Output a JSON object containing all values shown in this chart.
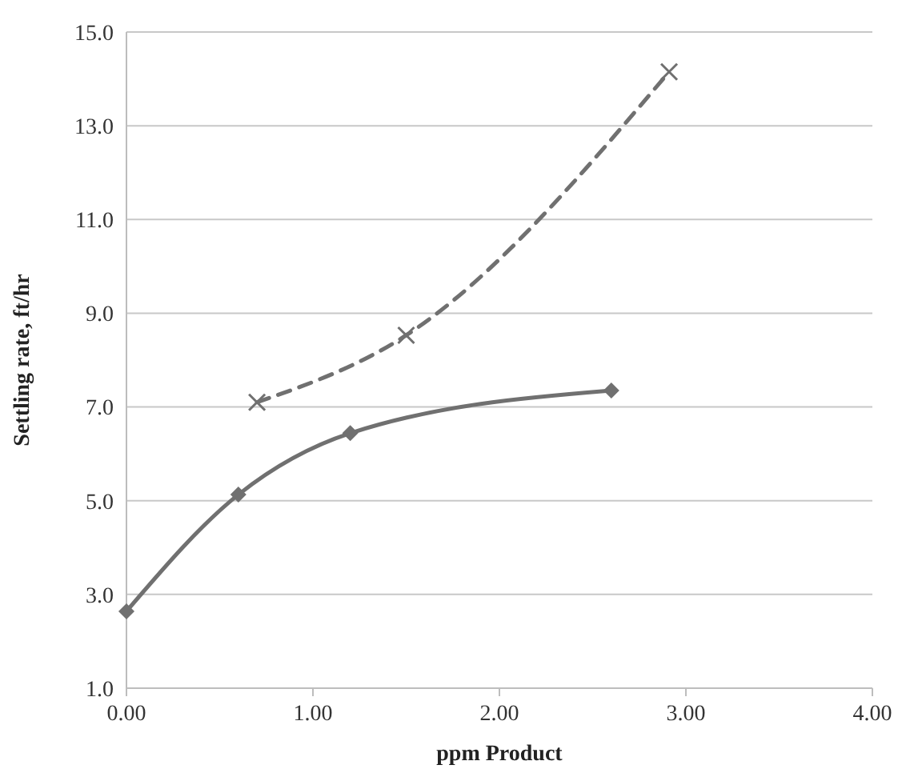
{
  "chart_data": {
    "type": "line",
    "xlabel": "ppm Product",
    "ylabel": "Settling rate, ft/hr",
    "xlim": [
      0,
      4
    ],
    "xticks": [
      {
        "value": 0,
        "label": "0.00"
      },
      {
        "value": 1,
        "label": "1.00"
      },
      {
        "value": 2,
        "label": "2.00"
      },
      {
        "value": 3,
        "label": "3.00"
      },
      {
        "value": 4,
        "label": "4.00"
      }
    ],
    "ylim": [
      1,
      15
    ],
    "yticks": [
      {
        "value": 1,
        "label": "1.0"
      },
      {
        "value": 3,
        "label": "3.0"
      },
      {
        "value": 5,
        "label": "5.0"
      },
      {
        "value": 7,
        "label": "7.0"
      },
      {
        "value": 9,
        "label": "9.0"
      },
      {
        "value": 11,
        "label": "11.0"
      },
      {
        "value": 13,
        "label": "13.0"
      },
      {
        "value": 15,
        "label": "15.0"
      }
    ],
    "grid": "y",
    "series": [
      {
        "color": "#707070",
        "x": [
          0,
          0.6,
          1.2,
          2.6
        ],
        "values": [
          2.64,
          5.13,
          6.44,
          7.35
        ],
        "marker": "diamond",
        "line_style": "solid"
      },
      {
        "color": "#707070",
        "x": [
          0.7,
          1.5,
          2.91
        ],
        "values": [
          7.1,
          8.53,
          14.15
        ],
        "marker": "cross",
        "line_style": "dashed"
      }
    ]
  }
}
